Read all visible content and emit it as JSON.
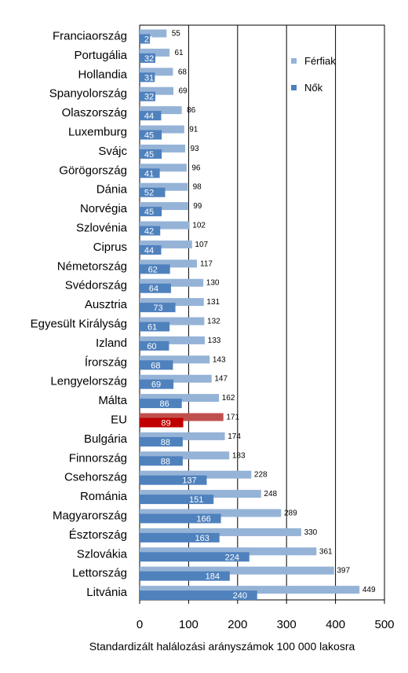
{
  "chart_data": {
    "type": "bar",
    "orientation": "horizontal",
    "xlabel": "Standardizált halálozási arányszámok 100 000 lakosra",
    "xlim": [
      0,
      500
    ],
    "xticks": [
      0,
      100,
      200,
      300,
      400,
      500
    ],
    "grid": true,
    "legend_position": "top-right",
    "categories": [
      "Franciaország",
      "Portugália",
      "Hollandia",
      "Spanyolország",
      "Olaszország",
      "Luxemburg",
      "Svájc",
      "Görögország",
      "Dánia",
      "Norvégia",
      "Szlovénia",
      "Ciprus",
      "Németország",
      "Svédország",
      "Ausztria",
      "Egyesült Királyság",
      "Izland",
      "Írország",
      "Lengyelország",
      "Málta",
      "EU",
      "Bulgária",
      "Finnország",
      "Csehország",
      "Románia",
      "Magyarország",
      "Észtország",
      "Szlovákia",
      "Lettország",
      "Litvánia"
    ],
    "series": [
      {
        "name": "Férfiak",
        "color": "#95b3d7",
        "values": [
          55,
          61,
          68,
          69,
          86,
          91,
          93,
          96,
          98,
          99,
          102,
          107,
          117,
          130,
          131,
          132,
          133,
          143,
          147,
          162,
          171,
          174,
          183,
          228,
          248,
          289,
          330,
          361,
          397,
          449
        ]
      },
      {
        "name": "Nők",
        "color": "#4f81bd",
        "values": [
          21,
          32,
          31,
          32,
          44,
          45,
          45,
          41,
          52,
          45,
          42,
          44,
          62,
          64,
          73,
          61,
          60,
          68,
          69,
          86,
          89,
          88,
          88,
          137,
          151,
          166,
          163,
          224,
          184,
          240
        ]
      }
    ],
    "highlight": {
      "category": "EU",
      "men_color": "#c0504d",
      "women_color": "#c00000"
    }
  }
}
